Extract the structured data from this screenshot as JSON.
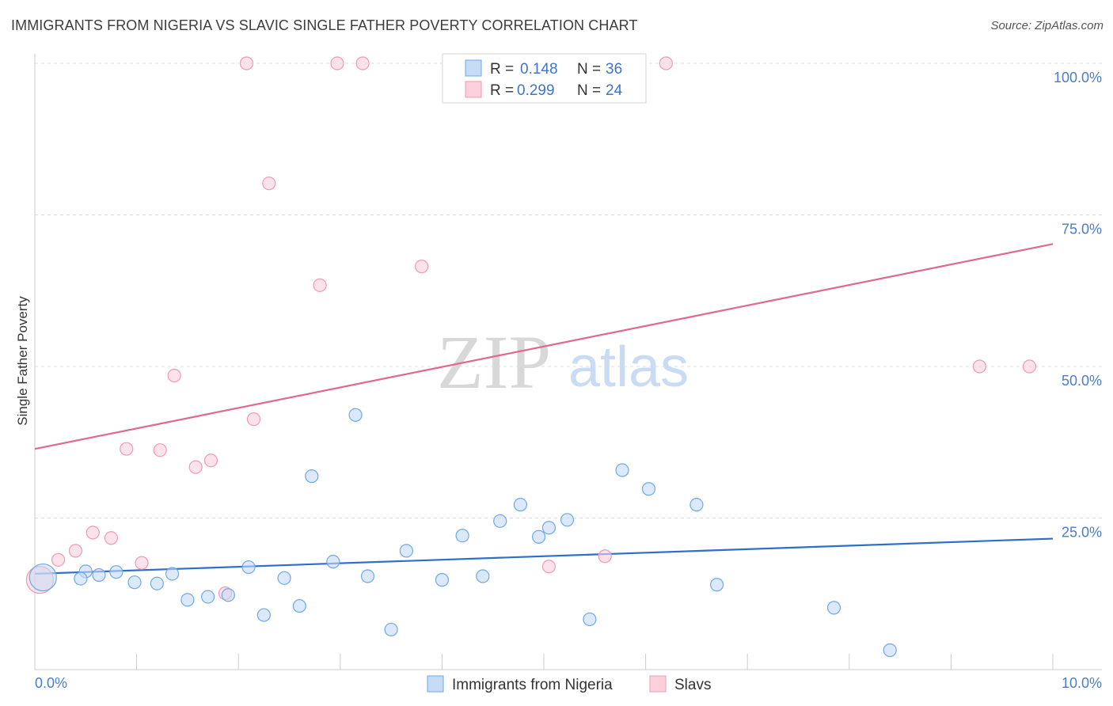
{
  "title": "IMMIGRANTS FROM NIGERIA VS SLAVIC SINGLE FATHER POVERTY CORRELATION CHART",
  "source": "Source: ZipAtlas.com",
  "watermark": {
    "zip": "ZIP",
    "atlas": "atlas"
  },
  "chart_data": {
    "type": "scatter",
    "xlabel": "",
    "ylabel": "Single Father Poverty",
    "xlim": [
      0,
      10
    ],
    "ylim": [
      0,
      100
    ],
    "x_tick_labels": [
      "0.0%",
      "10.0%"
    ],
    "y_ticks": [
      25,
      50,
      75,
      100
    ],
    "y_tick_labels": [
      "25.0%",
      "50.0%",
      "75.0%",
      "100.0%"
    ],
    "grid": true,
    "legend_placement": "top-center",
    "series": [
      {
        "name": "Immigrants from Nigeria",
        "color": "#6fa8e8",
        "fill": "#c5dbf6",
        "line_color": "#2f6fcc",
        "r_label": "R =",
        "r_value": "0.148",
        "n_label": "N =",
        "n_value": "36",
        "trend": {
          "x": [
            0,
            10
          ],
          "y": [
            15.8,
            21.6
          ]
        },
        "points": [
          {
            "x": 0.08,
            "y": 15.2,
            "big": true
          },
          {
            "x": 0.5,
            "y": 16.2
          },
          {
            "x": 0.45,
            "y": 15.0
          },
          {
            "x": 0.63,
            "y": 15.6
          },
          {
            "x": 0.8,
            "y": 16.1
          },
          {
            "x": 0.98,
            "y": 14.4
          },
          {
            "x": 1.2,
            "y": 14.2
          },
          {
            "x": 1.35,
            "y": 15.8
          },
          {
            "x": 1.5,
            "y": 11.5
          },
          {
            "x": 1.7,
            "y": 12.0
          },
          {
            "x": 1.9,
            "y": 12.3
          },
          {
            "x": 2.1,
            "y": 16.9
          },
          {
            "x": 2.25,
            "y": 9.0
          },
          {
            "x": 2.45,
            "y": 15.1
          },
          {
            "x": 2.6,
            "y": 10.5
          },
          {
            "x": 2.72,
            "y": 31.9
          },
          {
            "x": 2.93,
            "y": 17.8
          },
          {
            "x": 3.15,
            "y": 42.0
          },
          {
            "x": 3.27,
            "y": 15.4
          },
          {
            "x": 3.5,
            "y": 6.6
          },
          {
            "x": 3.65,
            "y": 19.6
          },
          {
            "x": 4.0,
            "y": 14.8
          },
          {
            "x": 4.2,
            "y": 22.1
          },
          {
            "x": 4.4,
            "y": 15.4
          },
          {
            "x": 4.57,
            "y": 24.5
          },
          {
            "x": 4.77,
            "y": 27.2
          },
          {
            "x": 4.95,
            "y": 21.9
          },
          {
            "x": 5.05,
            "y": 23.4
          },
          {
            "x": 5.23,
            "y": 24.7
          },
          {
            "x": 5.45,
            "y": 8.3
          },
          {
            "x": 5.77,
            "y": 32.9
          },
          {
            "x": 6.03,
            "y": 29.8
          },
          {
            "x": 6.5,
            "y": 27.2
          },
          {
            "x": 6.7,
            "y": 14.0
          },
          {
            "x": 7.85,
            "y": 10.2
          },
          {
            "x": 8.4,
            "y": 3.2
          }
        ]
      },
      {
        "name": "Slavs",
        "color": "#f09ab5",
        "fill": "#fad0dd",
        "line_color": "#e06990",
        "r_label": "R =",
        "r_value": "0.299",
        "n_label": "N =",
        "n_value": "24",
        "trend": {
          "x": [
            0,
            10
          ],
          "y": [
            36.4,
            70.2
          ]
        },
        "points": [
          {
            "x": 0.05,
            "y": 14.8,
            "big": true
          },
          {
            "x": 0.23,
            "y": 18.1
          },
          {
            "x": 0.4,
            "y": 19.6
          },
          {
            "x": 0.57,
            "y": 22.6
          },
          {
            "x": 0.75,
            "y": 21.7
          },
          {
            "x": 0.9,
            "y": 36.4
          },
          {
            "x": 1.05,
            "y": 17.6
          },
          {
            "x": 1.23,
            "y": 36.2
          },
          {
            "x": 1.37,
            "y": 48.5
          },
          {
            "x": 1.58,
            "y": 33.4
          },
          {
            "x": 1.73,
            "y": 34.5
          },
          {
            "x": 1.87,
            "y": 12.6
          },
          {
            "x": 2.08,
            "y": 100
          },
          {
            "x": 2.15,
            "y": 41.3
          },
          {
            "x": 2.3,
            "y": 80.2
          },
          {
            "x": 2.8,
            "y": 63.4
          },
          {
            "x": 2.97,
            "y": 100
          },
          {
            "x": 3.22,
            "y": 100
          },
          {
            "x": 3.8,
            "y": 66.5
          },
          {
            "x": 5.05,
            "y": 17.0
          },
          {
            "x": 5.6,
            "y": 18.7
          },
          {
            "x": 6.2,
            "y": 100
          },
          {
            "x": 9.28,
            "y": 50.0
          },
          {
            "x": 9.77,
            "y": 50.0
          }
        ]
      }
    ]
  }
}
